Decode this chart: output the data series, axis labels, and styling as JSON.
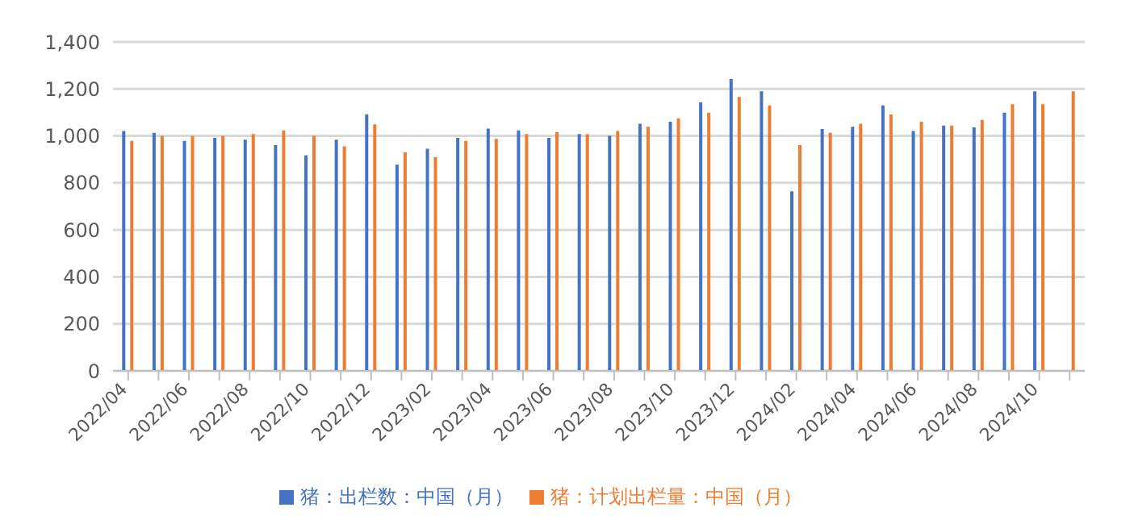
{
  "chart_data": {
    "type": "bar",
    "categories": [
      "2022/04",
      null,
      "2022/06",
      null,
      "2022/08",
      null,
      "2022/10",
      null,
      "2022/12",
      null,
      "2023/02",
      null,
      "2023/04",
      null,
      "2023/06",
      null,
      "2023/08",
      null,
      "2023/10",
      null,
      "2023/12",
      null,
      "2024/02",
      null,
      "2024/04",
      null,
      "2024/06",
      null,
      "2024/08",
      null,
      "2024/10",
      null
    ],
    "series": [
      {
        "name": "猪：出栏数：中国（月）",
        "color": "#4472c4",
        "values": [
          1021,
          1013,
          979,
          992,
          984,
          961,
          917,
          984,
          1091,
          878,
          945,
          992,
          1031,
          1023,
          992,
          1008,
          1000,
          1052,
          1060,
          1143,
          1242,
          1190,
          764,
          1029,
          1039,
          1130,
          1021,
          1044,
          1036,
          1099,
          1190,
          null
        ]
      },
      {
        "name": "猪：计划出栏量：中国（月）",
        "color": "#ed7d31",
        "values": [
          979,
          1000,
          1000,
          1000,
          1008,
          1023,
          1000,
          956,
          1049,
          930,
          909,
          979,
          987,
          1008,
          1016,
          1008,
          1021,
          1039,
          1075,
          1099,
          1166,
          1130,
          961,
          1013,
          1052,
          1091,
          1060,
          1044,
          1068,
          1135,
          1135,
          1190
        ]
      }
    ],
    "ylim": [
      0,
      1400
    ],
    "yticks": [
      0,
      200,
      400,
      600,
      800,
      {
        "value": 1000,
        "label": "1,000"
      },
      {
        "value": 1200,
        "label": "1,200"
      },
      {
        "value": 1400,
        "label": "1,400"
      }
    ],
    "grid": "y",
    "legend": "bottom"
  }
}
